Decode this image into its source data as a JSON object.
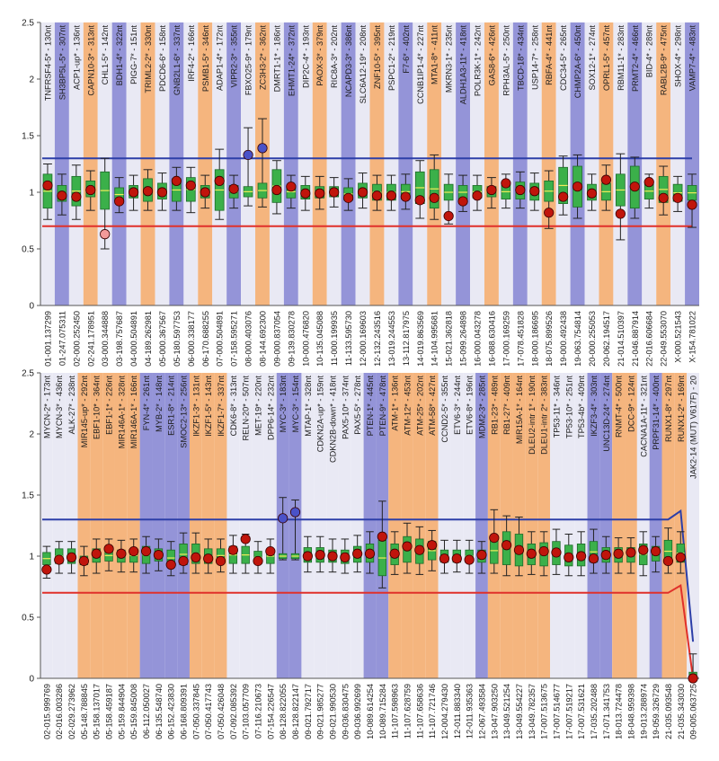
{
  "colors": {
    "band_orange": "#f5b57e",
    "band_blue": "#9494d8",
    "band_light": "#e9e9f4",
    "upper_line": "#2d3fa8",
    "lower_line": "#e0302a",
    "box_fill": "#3bb04a",
    "box_edge": "#1c6b28",
    "median": "#f3ec5a",
    "dot": "#c0150c",
    "dot_blue": "#4a52c8",
    "dot_pink": "#f39a9a"
  },
  "chart_data": [
    {
      "type": "box",
      "ylim": [
        0,
        2.5
      ],
      "yticks": [
        "0",
        "0.5",
        "1",
        "1.5",
        "2",
        "2.5"
      ],
      "upper_threshold": 1.3,
      "lower_threshold": 0.7,
      "probes": [
        "TNFRSF4-5* - 130nt",
        "SH3BP5L-5* - 307nt",
        "ACP1-up* - 136nt",
        "CAPN10-3* - 313nt",
        "CHL1-5* - 142nt",
        "BDH1-4* - 322nt",
        "PIGG-7* - 151nt",
        "TRIML2-2* - 330nt",
        "PDCD6-6* - 158nt",
        "GNB2L1-6* - 337nt",
        "IRF4-2* - 166nt",
        "PSMB1-5* - 346nt",
        "ADAP1-4* - 172nt",
        "VIPR2-3* - 355nt",
        "FBXO25-9* - 179nt",
        "ZC3H3-2* - 362nt",
        "DMRT1-1* - 186nt",
        "EHMT1-24* - 372nt",
        "DIP2C-4* - 193nt",
        "PAOX-3* - 379nt",
        "RIC8A-3* - 202nt",
        "NCAPD3-3* - 386nt",
        "SLC6A12-19* - 208nt",
        "ZNF10-5* - 395nt",
        "PSPC1-2* - 219nt",
        "F7-6* - 402nt",
        "CCNB1IP1-4* - 227nt",
        "MTA1-8* - 411nt",
        "MKRN3-1* - 235nt",
        "ALDH1A3-11* - 418nt",
        "POLR3K-1* - 242nt",
        "GAS8-6* - 426nt",
        "RPH3AL-5* - 250nt",
        "TBCD-18* - 434nt",
        "USP14-7* - 258nt",
        "RBFA-4* - 441nt",
        "CDC34-5* - 265nt",
        "CHMP2A-6* - 450nt",
        "SOX12-1* - 274nt",
        "OPRL1-5* - 457nt",
        "RBM11-1* - 283nt",
        "PRMT2-4* - 466nt",
        "BID-4* - 289nt",
        "RABL2B-9* - 475nt",
        "SHOX-4* - 298nt",
        "VAMP7-4* - 483nt"
      ],
      "positions": [
        "01-001.137299",
        "01-247.075311",
        "02-000.252450",
        "02-241.178951",
        "03-000.344888",
        "03-198.757687",
        "04-000.504891",
        "04-189.262981",
        "05-000.367567",
        "05-180.597753",
        "06-000.338177",
        "06-170.688255",
        "07-000.504891",
        "07-158.595271",
        "08-000.403076",
        "08-144.692300",
        "09-000.837054",
        "09-139.830278",
        "10-000.476820",
        "10-135.045088",
        "11-000.199935",
        "11-133.595730",
        "12-000.169603",
        "12-132.243516",
        "13-019.244553",
        "13-112.817975",
        "14-019.863569",
        "14-104.995681",
        "15-021.362818",
        "15-099.264898",
        "16-000.043278",
        "16-088.630416",
        "17-000.169259",
        "17-078.451828",
        "18-000.186695",
        "18-075.899526",
        "19-000.492438",
        "19-063.754814",
        "20-000.255053",
        "20-062.194517",
        "21-014.510397",
        "21-046.887914",
        "22-016.606684",
        "22-049.553070",
        "X-000.521543",
        "X-154.781022"
      ],
      "band_colors": [
        "l",
        "b",
        "l",
        "o",
        "l",
        "b",
        "l",
        "o",
        "l",
        "b",
        "l",
        "o",
        "l",
        "b",
        "l",
        "o",
        "l",
        "b",
        "l",
        "o",
        "l",
        "b",
        "l",
        "o",
        "l",
        "b",
        "l",
        "o",
        "l",
        "b",
        "l",
        "o",
        "l",
        "b",
        "l",
        "o",
        "l",
        "b",
        "l",
        "o",
        "l",
        "b",
        "l",
        "o",
        "l",
        "b"
      ],
      "ratios": [
        1.06,
        0.97,
        0.96,
        1.02,
        0.63,
        0.92,
        1.0,
        1.01,
        1.0,
        1.1,
        1.06,
        1.0,
        1.1,
        1.03,
        1.33,
        1.39,
        1.02,
        1.05,
        0.99,
        0.99,
        1.0,
        0.95,
        1.0,
        0.97,
        0.97,
        0.96,
        0.93,
        0.95,
        0.79,
        0.92,
        0.97,
        1.02,
        1.08,
        1.02,
        1.01,
        0.82,
        0.96,
        1.05,
        0.99,
        1.11,
        0.81,
        1.05,
        1.09,
        0.95,
        0.95,
        0.89
      ],
      "box_low": [
        0.86,
        0.92,
        0.88,
        0.96,
        0.85,
        0.92,
        0.95,
        0.92,
        0.94,
        0.92,
        0.92,
        0.95,
        0.84,
        0.95,
        0.96,
        0.95,
        0.91,
        0.95,
        0.94,
        0.95,
        0.96,
        0.93,
        0.95,
        0.93,
        0.93,
        0.94,
        0.9,
        0.86,
        0.93,
        0.94,
        0.95,
        0.96,
        0.94,
        0.94,
        0.93,
        0.92,
        0.9,
        0.87,
        0.93,
        0.93,
        0.88,
        0.86,
        0.94,
        0.91,
        0.92,
        0.93
      ],
      "box_high": [
        1.16,
        1.06,
        1.14,
        1.1,
        1.18,
        1.04,
        1.06,
        1.12,
        1.08,
        1.12,
        1.13,
        1.06,
        1.2,
        1.06,
        1.05,
        1.08,
        1.2,
        1.06,
        1.06,
        1.05,
        1.05,
        1.04,
        1.08,
        1.07,
        1.07,
        1.07,
        1.18,
        1.2,
        1.07,
        1.06,
        1.06,
        1.05,
        1.07,
        1.09,
        1.08,
        1.1,
        1.22,
        1.23,
        1.07,
        1.08,
        1.16,
        1.23,
        1.08,
        1.14,
        1.07,
        1.06
      ],
      "whisker_low": [
        0.76,
        0.8,
        0.76,
        0.84,
        0.5,
        0.82,
        0.84,
        0.84,
        0.84,
        0.84,
        0.82,
        0.86,
        0.76,
        0.86,
        0.88,
        0.87,
        0.81,
        0.86,
        0.84,
        0.85,
        0.87,
        0.84,
        0.86,
        0.84,
        0.84,
        0.85,
        0.77,
        0.76,
        0.72,
        0.83,
        0.84,
        0.86,
        0.86,
        0.86,
        0.84,
        0.68,
        0.8,
        0.77,
        0.84,
        0.84,
        0.58,
        0.77,
        0.86,
        0.8,
        0.83,
        0.69
      ],
      "whisker_high": [
        1.25,
        1.16,
        1.24,
        1.19,
        1.3,
        1.13,
        1.15,
        1.2,
        1.17,
        1.22,
        1.22,
        1.15,
        1.38,
        1.15,
        1.57,
        1.65,
        1.28,
        1.15,
        1.14,
        1.14,
        1.13,
        1.12,
        1.17,
        1.15,
        1.15,
        1.16,
        1.28,
        1.33,
        1.16,
        1.15,
        1.15,
        1.13,
        1.16,
        1.18,
        1.17,
        1.19,
        1.32,
        1.33,
        1.16,
        1.24,
        1.34,
        1.31,
        1.16,
        1.23,
        1.14,
        1.16
      ],
      "dot_style": [
        "r",
        "r",
        "r",
        "r",
        "p",
        "r",
        "r",
        "r",
        "r",
        "r",
        "r",
        "r",
        "r",
        "r",
        "b",
        "b",
        "r",
        "r",
        "r",
        "r",
        "r",
        "r",
        "r",
        "r",
        "r",
        "r",
        "r",
        "r",
        "r",
        "r",
        "r",
        "r",
        "r",
        "r",
        "r",
        "r",
        "r",
        "r",
        "r",
        "r",
        "r",
        "r",
        "r",
        "r",
        "r",
        "r"
      ]
    },
    {
      "type": "box",
      "ylim": [
        0,
        2.5
      ],
      "yticks": [
        "0",
        "0.5",
        "1",
        "1.5",
        "2",
        "2.5"
      ],
      "upper_threshold": 1.3,
      "lower_threshold": 0.7,
      "probes": [
        "MYCN-2* - 173nt",
        "MYCN-3* - 436nt",
        "ALK-27* - 238nt",
        "MIR145-up* - 292nt",
        "EBF1-10* - 364nt",
        "EBF1-1* - 226nt",
        "MIR146A-1* - 328nt",
        "MIR146A-1* - 166nt",
        "FYN-4* - 261nt",
        "MYB-2* - 148nt",
        "ESR1-8* - 214nt",
        "SMOC2-13* - 256nt",
        "IKZF1-3* - 131nt",
        "IKZF1-5* - 143nt",
        "IKZF1-7* - 337nt",
        "CDK6-8* - 313nt",
        "RELN-20* - 507nt",
        "MET-19* - 220nt",
        "DPP6-14* - 232nt",
        "MYC-3* - 183nt",
        "MYC-3* - 154nt",
        "MTAP-1* - 328nt",
        "CDKN2A-up* - 159nt",
        "CDKN2B-down* - 418nt",
        "PAX5-10* - 374nt",
        "PAX5-5* - 278nt",
        "PTEN-1* - 445nt",
        "PTEN-9* - 478nt",
        "ATM-1* - 136nt",
        "ATM-12* - 453nt",
        "ATM-25* - 202nt",
        "ATM-58* - 427nt",
        "CCND2-5* - 355nt",
        "ETV6-3* - 244nt",
        "ETV6-8* - 196nt",
        "MDM2-3* - 285nt",
        "RB1-23* - 489nt",
        "RB1-27* - 409nt",
        "MIR15A-1* - 164nt",
        "DLEU2-intr 1* - 190nt",
        "DLEU1-intr 2* - 383nt",
        "TP53-11* - 346nt",
        "TP53-10* - 251nt",
        "TP53-4b* - 409nt",
        "IKZF3-4* - 303nt",
        "UNC13D-24* - 274nt",
        "RNMT-4* - 500nt",
        "DCC-9* - 124nt",
        "CACNA1A-11* - 321nt",
        "PRPF31-14* - 400nt",
        "RUNX1-8* - 297nt",
        "RUNX1-2* - 169nt",
        "JAK2-14 (MUT) V617F) - 20"
      ],
      "positions": [
        "02-015.999769",
        "02-016.003286",
        "02-029.273962",
        "05-148.788845",
        "05-158.137017",
        "05-158.459187",
        "05-159.844904",
        "05-159.845008",
        "06-112.050027",
        "06-135.548740",
        "06-152.423830",
        "06-168.809391",
        "07-050.337845",
        "07-050.417743",
        "07-050.426048",
        "07-092.085392",
        "07-103.057709",
        "07-116.210673",
        "07-154.226547",
        "08-128.822055",
        "08-128.822147",
        "09-021.792717",
        "09-021.985277",
        "09-021.990530",
        "09-036.830475",
        "09-036.992699",
        "10-089.614254",
        "10-089.715284",
        "11-107.598963",
        "11-107.628759",
        "11-107.658636",
        "11-107.721746",
        "12-004.279430",
        "12-011.883340",
        "12-011.935363",
        "12-067.493584",
        "13-047.903250",
        "13-049.521254",
        "13-049.554227",
        "13-049.782357",
        "17-007.513675",
        "17-007.514677",
        "17-007.519217",
        "17-007.531621",
        "17-035.202488",
        "17-071.341753",
        "18-013.724478",
        "18-048.959398",
        "19-013.288974",
        "19-059.326729",
        "21-035.093548",
        "21-035.343030",
        "09-005.063725"
      ],
      "band_colors": [
        "l",
        "l",
        "l",
        "o",
        "o",
        "o",
        "o",
        "o",
        "b",
        "b",
        "b",
        "b",
        "o",
        "o",
        "o",
        "l",
        "l",
        "l",
        "l",
        "b",
        "b",
        "l",
        "l",
        "l",
        "l",
        "l",
        "b",
        "b",
        "o",
        "o",
        "o",
        "o",
        "l",
        "l",
        "l",
        "b",
        "o",
        "o",
        "o",
        "o",
        "o",
        "l",
        "l",
        "l",
        "b",
        "b",
        "o",
        "o",
        "l",
        "b",
        "o",
        "o",
        "l"
      ],
      "ratios": [
        0.89,
        0.97,
        0.99,
        0.96,
        1.02,
        1.06,
        1.02,
        1.04,
        1.04,
        1.01,
        0.93,
        0.96,
        0.99,
        0.98,
        0.96,
        1.05,
        1.14,
        0.96,
        1.04,
        1.31,
        1.36,
        1.0,
        1.01,
        1.0,
        0.99,
        1.02,
        1.02,
        1.16,
        1.02,
        1.08,
        1.05,
        1.09,
        0.98,
        0.98,
        0.97,
        1.01,
        1.15,
        1.09,
        1.05,
        1.02,
        1.04,
        1.03,
        0.99,
        1.0,
        0.98,
        1.01,
        1.02,
        1.03,
        1.05,
        1.04,
        0.96,
        0.99,
        0.0
      ],
      "box_low": [
        0.93,
        0.94,
        0.94,
        0.93,
        0.95,
        0.96,
        0.95,
        0.95,
        0.94,
        0.96,
        0.92,
        0.93,
        0.94,
        0.94,
        0.95,
        0.94,
        0.94,
        0.94,
        0.94,
        0.98,
        0.98,
        0.95,
        0.95,
        0.95,
        0.94,
        0.95,
        0.95,
        0.84,
        0.93,
        0.95,
        0.94,
        0.97,
        0.95,
        0.95,
        0.95,
        0.95,
        0.94,
        0.93,
        0.92,
        0.93,
        0.92,
        0.93,
        0.92,
        0.92,
        0.95,
        0.95,
        0.95,
        0.95,
        0.93,
        0.96,
        0.95,
        0.95,
        0.0
      ],
      "box_high": [
        1.03,
        1.06,
        1.06,
        1.0,
        1.06,
        1.05,
        1.05,
        1.06,
        1.08,
        1.06,
        1.05,
        1.1,
        1.1,
        1.06,
        1.06,
        1.08,
        1.08,
        1.04,
        1.06,
        1.02,
        1.02,
        1.07,
        1.07,
        1.05,
        1.05,
        1.08,
        1.1,
        1.13,
        1.1,
        1.16,
        1.14,
        1.12,
        1.05,
        1.05,
        1.05,
        1.05,
        1.15,
        1.2,
        1.18,
        1.1,
        1.11,
        1.12,
        1.09,
        1.1,
        1.12,
        1.07,
        1.07,
        1.07,
        1.1,
        1.08,
        1.13,
        1.1,
        0.05
      ],
      "whisker_low": [
        0.82,
        0.86,
        0.86,
        0.84,
        0.86,
        0.88,
        0.87,
        0.87,
        0.86,
        0.88,
        0.84,
        0.86,
        0.86,
        0.86,
        0.87,
        0.86,
        0.86,
        0.86,
        0.86,
        0.97,
        0.97,
        0.87,
        0.87,
        0.87,
        0.86,
        0.87,
        0.86,
        0.74,
        0.85,
        0.86,
        0.85,
        0.88,
        0.86,
        0.87,
        0.86,
        0.86,
        0.86,
        0.84,
        0.84,
        0.85,
        0.84,
        0.85,
        0.84,
        0.84,
        0.86,
        0.86,
        0.86,
        0.86,
        0.84,
        0.87,
        0.86,
        0.86,
        0.0
      ],
      "whisker_high": [
        1.08,
        1.12,
        1.12,
        1.08,
        1.14,
        1.14,
        1.13,
        1.14,
        1.16,
        1.14,
        1.12,
        1.19,
        1.19,
        1.14,
        1.14,
        1.17,
        1.18,
        1.12,
        1.14,
        1.48,
        1.46,
        1.16,
        1.16,
        1.14,
        1.14,
        1.17,
        1.2,
        1.45,
        1.2,
        1.27,
        1.24,
        1.21,
        1.13,
        1.13,
        1.13,
        1.12,
        1.38,
        1.33,
        1.32,
        1.2,
        1.2,
        1.22,
        1.18,
        1.2,
        1.22,
        1.16,
        1.15,
        1.15,
        1.2,
        1.16,
        1.23,
        1.2,
        0.2
      ],
      "dot_style": [
        "r",
        "r",
        "r",
        "r",
        "r",
        "r",
        "r",
        "r",
        "r",
        "r",
        "r",
        "r",
        "r",
        "r",
        "r",
        "r",
        "r",
        "r",
        "r",
        "b",
        "b",
        "r",
        "r",
        "r",
        "r",
        "r",
        "r",
        "r",
        "r",
        "r",
        "r",
        "r",
        "r",
        "r",
        "r",
        "r",
        "r",
        "r",
        "r",
        "r",
        "r",
        "r",
        "r",
        "r",
        "r",
        "r",
        "r",
        "r",
        "r",
        "r",
        "r",
        "r",
        "r"
      ]
    }
  ]
}
